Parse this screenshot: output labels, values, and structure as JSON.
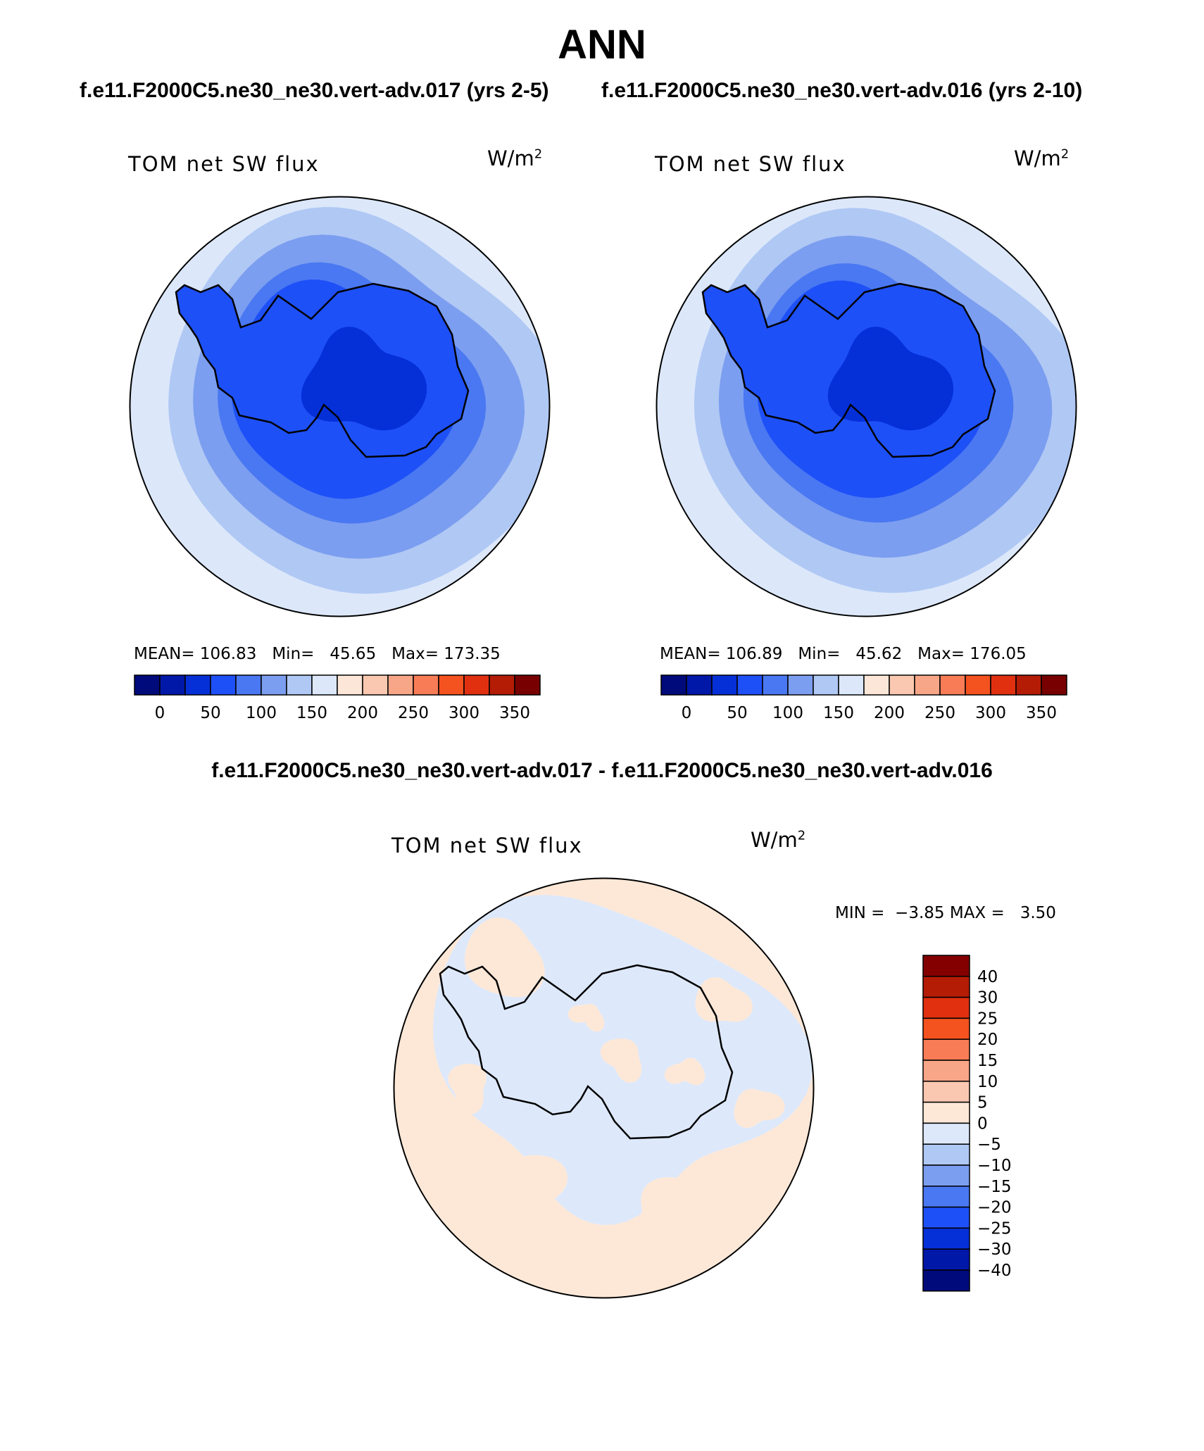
{
  "header": {
    "title": "ANN",
    "case_a": "f.e11.F2000C5.ne30_ne30.vert-adv.017 (yrs 2-5)",
    "case_b": "f.e11.F2000C5.ne30_ne30.vert-adv.016 (yrs 2-10)",
    "diff_title": "f.e11.F2000C5.ne30_ne30.vert-adv.017 - f.e11.F2000C5.ne30_ne30.vert-adv.016"
  },
  "panels": [
    {
      "plot_title": "TOM net SW flux",
      "unit": "W/m",
      "unit_exp": "2",
      "mean_label": "MEAN=",
      "mean": "106.83",
      "min_label": "Min=",
      "min": "45.65",
      "max_label": "Max=",
      "max": "173.35"
    },
    {
      "plot_title": "TOM net SW flux",
      "unit": "W/m",
      "unit_exp": "2",
      "mean_label": "MEAN=",
      "mean": "106.89",
      "min_label": "Min=",
      "min": "45.62",
      "max_label": "Max=",
      "max": "176.05"
    }
  ],
  "diff_panel": {
    "plot_title": "TOM net SW flux",
    "unit": "W/m",
    "unit_exp": "2",
    "min_label": "MIN =",
    "min": "−3.85",
    "max_label": "MAX =",
    "max": "3.50"
  },
  "colorbar_abs": {
    "labels": [
      "0",
      "50",
      "100",
      "150",
      "200",
      "250",
      "300",
      "350"
    ],
    "colors": [
      "#000a7a",
      "#0018a8",
      "#0530d8",
      "#1e50f8",
      "#4a78f2",
      "#7c9ef0",
      "#b0c8f4",
      "#dce8fa",
      "#fbe6d8",
      "#fac8b0",
      "#f8a688",
      "#f87c56",
      "#f4521e",
      "#e03010",
      "#b41c06",
      "#780000"
    ]
  },
  "colorbar_diff": {
    "labels": [
      "40",
      "30",
      "25",
      "20",
      "15",
      "10",
      "5",
      "0",
      "−5",
      "−10",
      "−15",
      "−20",
      "−25",
      "−30",
      "−40"
    ],
    "colors": [
      "#840000",
      "#b41c06",
      "#e03010",
      "#f4521e",
      "#f87c56",
      "#f8a688",
      "#fac8b0",
      "#fde8d8",
      "#dde9fb",
      "#b0c8f4",
      "#7c9ef0",
      "#4a78f2",
      "#1e50f8",
      "#0530d8",
      "#0018a8",
      "#000a7a"
    ]
  },
  "map_colors": {
    "abs_levels": [
      "#dce8fa",
      "#b0c8f4",
      "#7c9ef0",
      "#4a78f2",
      "#1e50f8",
      "#0530d8"
    ],
    "diff_pos": "#fde8d8",
    "diff_neg": "#dde9fb"
  }
}
